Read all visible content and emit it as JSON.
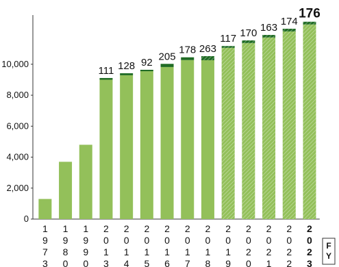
{
  "chart_data": {
    "type": "stacked-bar",
    "categories": [
      "1973",
      "1980",
      "1990",
      "2013",
      "2014",
      "2015",
      "2016",
      "2017",
      "2018",
      "2019",
      "2020",
      "2021",
      "2022",
      "2023"
    ],
    "x_label": "FY",
    "series": [
      {
        "color": "#93c05a",
        "values": [
          1300,
          3700,
          4800,
          9000,
          9290,
          9550,
          9820,
          10270,
          10260,
          11060,
          11370,
          11730,
          12120,
          12570
        ],
        "hatched": [
          false,
          false,
          false,
          false,
          false,
          false,
          false,
          false,
          false,
          true,
          true,
          true,
          true,
          true
        ]
      },
      {
        "color": "#1f6b24",
        "values": [
          null,
          null,
          null,
          111,
          128,
          92,
          205,
          178,
          263,
          117,
          170,
          163,
          174,
          176
        ],
        "hatched": [
          false,
          false,
          false,
          false,
          false,
          false,
          false,
          false,
          true,
          true,
          true,
          true,
          true,
          true
        ]
      }
    ],
    "ylim": [
      0,
      13000
    ],
    "yticks": [
      0,
      {
        "value": 2000,
        "label": "2,000"
      },
      {
        "value": 4000,
        "label": "4,000"
      },
      {
        "value": 6000,
        "label": "6,000"
      },
      {
        "value": 8000,
        "label": "8,000"
      },
      {
        "value": 10000,
        "label": "10,000"
      }
    ]
  }
}
